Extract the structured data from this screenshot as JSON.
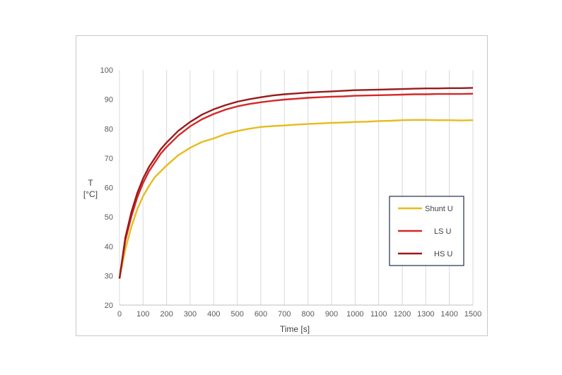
{
  "chart_data": {
    "type": "line",
    "xlabel": "Time [s]",
    "ylabel": [
      "T",
      "[°C]"
    ],
    "xlim": [
      0,
      1500
    ],
    "ylim": [
      20,
      100
    ],
    "xticks": [
      0,
      100,
      200,
      300,
      400,
      500,
      600,
      700,
      800,
      900,
      1000,
      1100,
      1200,
      1300,
      1400,
      1500
    ],
    "yticks": [
      20,
      30,
      40,
      50,
      60,
      70,
      80,
      90,
      100
    ],
    "grid": "vertical",
    "legend_position": "right",
    "x": [
      0,
      25,
      50,
      75,
      100,
      125,
      150,
      175,
      200,
      250,
      300,
      350,
      400,
      450,
      500,
      550,
      600,
      650,
      700,
      750,
      800,
      850,
      900,
      950,
      1000,
      1050,
      1100,
      1150,
      1200,
      1250,
      1300,
      1350,
      1400,
      1450,
      1500
    ],
    "series": [
      {
        "name": "Shunt U",
        "color": "#e6bc1c",
        "values": [
          29,
          39,
          46.5,
          52.5,
          57,
          60.5,
          63.5,
          65.5,
          67.5,
          71,
          73.5,
          75.5,
          76.7,
          78.2,
          79.2,
          80,
          80.6,
          80.9,
          81.1,
          81.4,
          81.6,
          81.8,
          82,
          82.1,
          82.3,
          82.4,
          82.6,
          82.7,
          82.9,
          83,
          83,
          82.9,
          82.9,
          82.8,
          82.9
        ]
      },
      {
        "name": "LS U",
        "color": "#d42828",
        "values": [
          29,
          42,
          50,
          56.5,
          61.5,
          65.5,
          68.5,
          71.5,
          73.8,
          77.7,
          80.8,
          83.2,
          85,
          86.5,
          87.6,
          88.4,
          89,
          89.5,
          89.9,
          90.2,
          90.5,
          90.7,
          90.9,
          91,
          91.2,
          91.3,
          91.4,
          91.5,
          91.6,
          91.7,
          91.7,
          91.8,
          91.8,
          91.8,
          91.9
        ]
      },
      {
        "name": "HS U",
        "color": "#9a1b1b",
        "values": [
          29,
          43,
          51.5,
          58,
          63,
          67,
          70,
          73,
          75.3,
          79.3,
          82.3,
          84.8,
          86.6,
          88,
          89.2,
          90,
          90.7,
          91.3,
          91.7,
          92,
          92.3,
          92.5,
          92.7,
          92.9,
          93.1,
          93.2,
          93.3,
          93.4,
          93.5,
          93.6,
          93.7,
          93.7,
          93.8,
          93.8,
          93.9
        ]
      }
    ]
  }
}
